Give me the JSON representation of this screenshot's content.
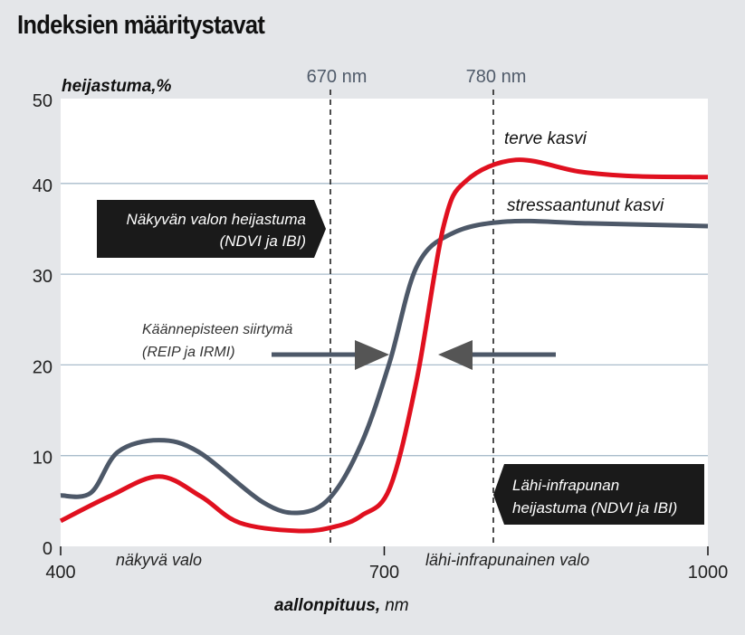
{
  "title": "Indeksien määritystavat",
  "chart_data": {
    "type": "line",
    "title": "Indeksien määritystavat",
    "ylabel": "heijastuma,%",
    "xlabel_bold": "aallonpituus,",
    "xlabel_unit": "nm",
    "xlim": [
      400,
      1000
    ],
    "ylim": [
      0,
      50
    ],
    "x_ticks": [
      "400",
      "700",
      "1000"
    ],
    "y_ticks": [
      "0",
      "10",
      "20",
      "30",
      "40",
      "50"
    ],
    "grid": "horizontal",
    "series": [
      {
        "name": "terve kasvi",
        "color": "#e0101f",
        "points": [
          [
            400,
            2.8
          ],
          [
            445,
            5.5
          ],
          [
            491,
            7.7
          ],
          [
            530,
            5.5
          ],
          [
            566,
            2.6
          ],
          [
            621,
            1.7
          ],
          [
            655,
            2.2
          ],
          [
            679,
            3.4
          ],
          [
            705,
            6.4
          ],
          [
            730,
            18.3
          ],
          [
            755,
            35.3
          ],
          [
            776,
            40.3
          ],
          [
            822,
            42.6
          ],
          [
            881,
            41.3
          ],
          [
            931,
            40.8
          ],
          [
            1000,
            40.7
          ]
        ]
      },
      {
        "name": "stressaantunut kasvi",
        "color": "#4d5868",
        "points": [
          [
            400,
            5.6
          ],
          [
            428,
            5.9
          ],
          [
            453,
            10.4
          ],
          [
            491,
            11.7
          ],
          [
            528,
            10.4
          ],
          [
            587,
            4.9
          ],
          [
            621,
            3.7
          ],
          [
            650,
            5.4
          ],
          [
            679,
            11.4
          ],
          [
            705,
            20.3
          ],
          [
            730,
            30.8
          ],
          [
            763,
            34.5
          ],
          [
            814,
            35.8
          ],
          [
            889,
            35.6
          ],
          [
            1000,
            35.3
          ]
        ]
      }
    ],
    "vertical_markers": [
      "670 nm",
      "780 nm"
    ],
    "annotations": {
      "visible_box": [
        "Näkyvän valon heijastuma",
        "(NDVI ja IBI)"
      ],
      "nir_box": [
        "Lähi-infrapunan",
        "heijastuma (NDVI ja IBI)"
      ],
      "shift": [
        "Käännepisteen siirtymä",
        "(REIP ja IRMI)"
      ],
      "visible_region": "näkyvä valo",
      "nir_region": "lähi-infrapunainen valo"
    }
  }
}
